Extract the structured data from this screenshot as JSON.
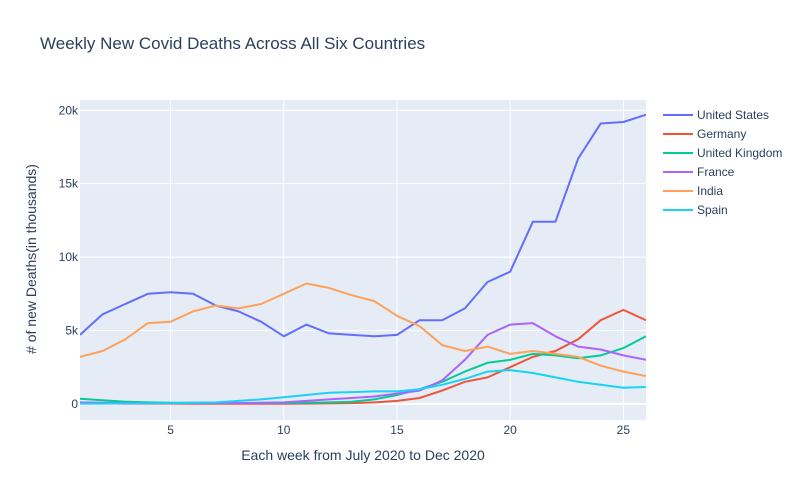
{
  "chart_data": {
    "type": "line",
    "title": "Weekly New Covid Deaths Across All Six Countries",
    "xlabel": "Each week from July 2020 to Dec 2020",
    "ylabel": "# of new Deaths(in thousands)",
    "xlim": [
      1,
      26
    ],
    "ylim": [
      -1100,
      20700
    ],
    "x_ticks": [
      5,
      10,
      15,
      20,
      25
    ],
    "x_tick_labels": [
      "5",
      "10",
      "15",
      "20",
      "25"
    ],
    "y_ticks": [
      0,
      5000,
      10000,
      15000,
      20000
    ],
    "y_tick_labels": [
      "0",
      "5k",
      "10k",
      "15k",
      "20k"
    ],
    "grid": true,
    "legend_position": "right",
    "plot_background": "#e5ecf6",
    "x": [
      1,
      2,
      3,
      4,
      5,
      6,
      7,
      8,
      9,
      10,
      11,
      12,
      13,
      14,
      15,
      16,
      17,
      18,
      19,
      20,
      21,
      22,
      23,
      24,
      25,
      26
    ],
    "series": [
      {
        "name": "United States",
        "color": "#636efa",
        "values": [
          4700,
          6100,
          6800,
          7500,
          7600,
          7500,
          6700,
          6300,
          5600,
          4600,
          5400,
          4800,
          4700,
          4600,
          4700,
          5700,
          5700,
          6500,
          8300,
          9000,
          12400,
          12400,
          16700,
          19100,
          19200,
          19700
        ]
      },
      {
        "name": "Germany",
        "color": "#ef553b",
        "values": [
          40,
          30,
          20,
          20,
          20,
          10,
          10,
          10,
          10,
          10,
          20,
          30,
          50,
          100,
          200,
          400,
          900,
          1500,
          1800,
          2500,
          3200,
          3600,
          4400,
          5700,
          6400,
          5700
        ]
      },
      {
        "name": "United Kingdom",
        "color": "#00cc96",
        "values": [
          350,
          250,
          150,
          100,
          80,
          80,
          70,
          60,
          60,
          60,
          80,
          100,
          150,
          300,
          600,
          1000,
          1500,
          2200,
          2800,
          3000,
          3400,
          3300,
          3100,
          3300,
          3800,
          4600
        ]
      },
      {
        "name": "France",
        "color": "#ab63fa",
        "values": [
          100,
          80,
          60,
          50,
          50,
          50,
          50,
          60,
          70,
          100,
          200,
          300,
          400,
          500,
          700,
          900,
          1600,
          3000,
          4700,
          5400,
          5500,
          4600,
          3900,
          3700,
          3300,
          3000
        ]
      },
      {
        "name": "India",
        "color": "#ffa15a",
        "values": [
          3200,
          3600,
          4400,
          5500,
          5600,
          6300,
          6700,
          6500,
          6800,
          7500,
          8200,
          7900,
          7400,
          7000,
          6000,
          5300,
          4000,
          3600,
          3900,
          3400,
          3600,
          3400,
          3200,
          2600,
          2200,
          1900
        ]
      },
      {
        "name": "Spain",
        "color": "#19d3f3",
        "values": [
          20,
          20,
          30,
          40,
          50,
          70,
          100,
          200,
          300,
          450,
          600,
          750,
          800,
          850,
          850,
          1000,
          1300,
          1700,
          2200,
          2300,
          2100,
          1800,
          1500,
          1300,
          1100,
          1150
        ]
      }
    ]
  }
}
